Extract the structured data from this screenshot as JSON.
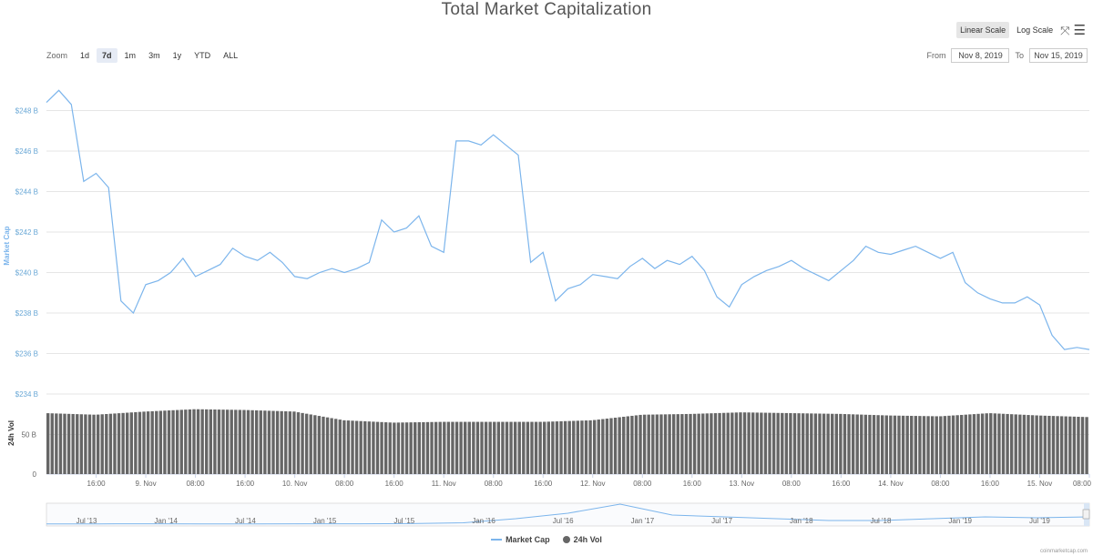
{
  "title": "Total Market Capitalization",
  "zoom": {
    "label": "Zoom",
    "buttons": [
      "1d",
      "7d",
      "1m",
      "3m",
      "1y",
      "YTD",
      "ALL"
    ],
    "active": "7d"
  },
  "scale": {
    "linear": "Linear Scale",
    "log": "Log Scale",
    "active": "linear"
  },
  "range": {
    "from_label": "From",
    "from_value": "Nov 8, 2019",
    "to_label": "To",
    "to_value": "Nov 15, 2019"
  },
  "legend": {
    "market_cap": "Market Cap",
    "vol": "24h Vol"
  },
  "credit": "coinmarketcap.com",
  "colors": {
    "line": "#7cb5ec",
    "bars": "#666666",
    "grid": "#e6e6e6"
  },
  "chart_data": {
    "type": "line",
    "x_axis_labels": [
      "16:00",
      "9. Nov",
      "08:00",
      "16:00",
      "10. Nov",
      "08:00",
      "16:00",
      "11. Nov",
      "08:00",
      "16:00",
      "12. Nov",
      "08:00",
      "16:00",
      "13. Nov",
      "08:00",
      "16:00",
      "14. Nov",
      "08:00",
      "16:00",
      "15. Nov",
      "08:00"
    ],
    "price_panel": {
      "ylabel": "Market Cap",
      "ticks": [
        "$234 B",
        "$236 B",
        "$238 B",
        "$240 B",
        "$242 B",
        "$244 B",
        "$246 B",
        "$248 B"
      ],
      "ylim": [
        234,
        250
      ]
    },
    "volume_panel": {
      "ylabel": "24h Vol",
      "ticks": [
        "0",
        "50 B"
      ],
      "ylim": [
        0,
        100
      ]
    },
    "series": [
      {
        "name": "Market Cap",
        "unit": "B USD",
        "x_hours": [
          0,
          2,
          4,
          6,
          8,
          10,
          12,
          14,
          16,
          18,
          20,
          22,
          24,
          26,
          28,
          30,
          32,
          34,
          36,
          38,
          40,
          42,
          44,
          46,
          48,
          50,
          52,
          54,
          56,
          58,
          60,
          62,
          64,
          66,
          68,
          70,
          72,
          74,
          76,
          78,
          80,
          82,
          84,
          86,
          88,
          90,
          92,
          94,
          96,
          98,
          100,
          102,
          104,
          106,
          108,
          110,
          112,
          114,
          116,
          118,
          120,
          122,
          124,
          126,
          128,
          130,
          132,
          134,
          136,
          138,
          140,
          142,
          144,
          146,
          148,
          150,
          152,
          154,
          156,
          158,
          160,
          162,
          164,
          166,
          168
        ],
        "values": [
          248.4,
          249.0,
          248.3,
          244.5,
          244.9,
          244.2,
          238.6,
          238.0,
          239.4,
          239.6,
          240.0,
          240.7,
          239.8,
          240.1,
          240.4,
          241.2,
          240.8,
          240.6,
          241.0,
          240.5,
          239.8,
          239.7,
          240.0,
          240.2,
          240.0,
          240.2,
          240.5,
          242.6,
          242.0,
          242.2,
          242.8,
          241.3,
          241.0,
          246.5,
          246.5,
          246.3,
          246.8,
          246.3,
          245.8,
          240.5,
          241.0,
          238.6,
          239.2,
          239.4,
          239.9,
          239.8,
          239.7,
          240.3,
          240.7,
          240.2,
          240.6,
          240.4,
          240.8,
          240.1,
          238.8,
          238.3,
          239.4,
          239.8,
          240.1,
          240.3,
          240.6,
          240.2,
          239.9,
          239.6,
          240.1,
          240.6,
          241.3,
          241.0,
          240.9,
          241.1,
          241.3,
          241.0,
          240.7,
          241.0,
          239.5,
          239.0,
          238.7,
          238.5,
          238.5,
          238.8,
          238.4,
          236.9,
          236.2,
          236.3,
          236.2
        ]
      },
      {
        "name": "24h Vol",
        "unit": "B USD",
        "x_hours": [
          0,
          8,
          16,
          24,
          32,
          40,
          48,
          56,
          64,
          72,
          80,
          88,
          96,
          104,
          112,
          120,
          128,
          136,
          144,
          152,
          160,
          168
        ],
        "values": [
          77,
          75,
          79,
          82,
          81,
          79,
          68,
          65,
          66,
          66,
          66,
          68,
          75,
          76,
          78,
          77,
          76,
          74,
          73,
          77,
          74,
          72
        ]
      }
    ],
    "navigator": {
      "labels": [
        "Jul '13",
        "Jan '14",
        "Jul '14",
        "Jan '15",
        "Jul '15",
        "Jan '16",
        "Jul '16",
        "Jan '17",
        "Jul '17",
        "Jan '18",
        "Jul '18",
        "Jan '19",
        "Jul '19"
      ]
    }
  }
}
